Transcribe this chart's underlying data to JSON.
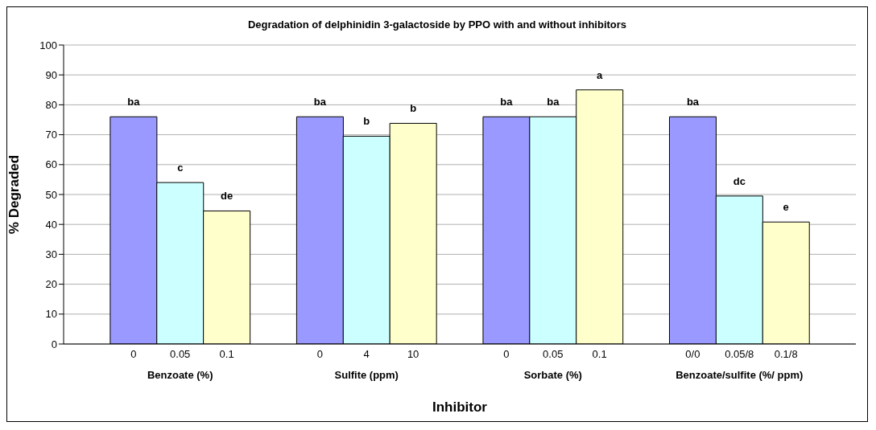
{
  "chart_data": {
    "type": "bar",
    "title": "Degradation of delphinidin 3-galactoside by PPO with and without inhibitors",
    "xlabel": "Inhibitor",
    "ylabel": "% Degraded",
    "categories": [
      "0",
      "0.05",
      "0.1",
      "0",
      "4",
      "10",
      "0",
      "0.05",
      "0.1",
      "0/0",
      "0.05/8",
      "0.1/8"
    ],
    "values": [
      76,
      54,
      44.5,
      76,
      69.5,
      73.8,
      76,
      76,
      85,
      76,
      49.5,
      40.8
    ],
    "colors": [
      "#9999ff",
      "#ccffff",
      "#ffffcc",
      "#9999ff",
      "#ccffff",
      "#ffffcc",
      "#9999ff",
      "#ccffff",
      "#ffffcc",
      "#9999ff",
      "#ccffff",
      "#ffffcc"
    ],
    "value_labels": [
      "ba",
      "c",
      "de",
      "ba",
      "b",
      "b",
      "ba",
      "ba",
      "a",
      "ba",
      "dc",
      "e"
    ],
    "annotations": [
      "Benzoate (%)",
      "Sulfite (ppm)",
      "Sorbate (%)",
      "Benzoate/sulfite (%/ ppm)"
    ],
    "ylim": [
      0,
      100
    ],
    "yticks": [
      0,
      10,
      20,
      30,
      40,
      50,
      60,
      70,
      80,
      90,
      100
    ],
    "grid": "y"
  }
}
